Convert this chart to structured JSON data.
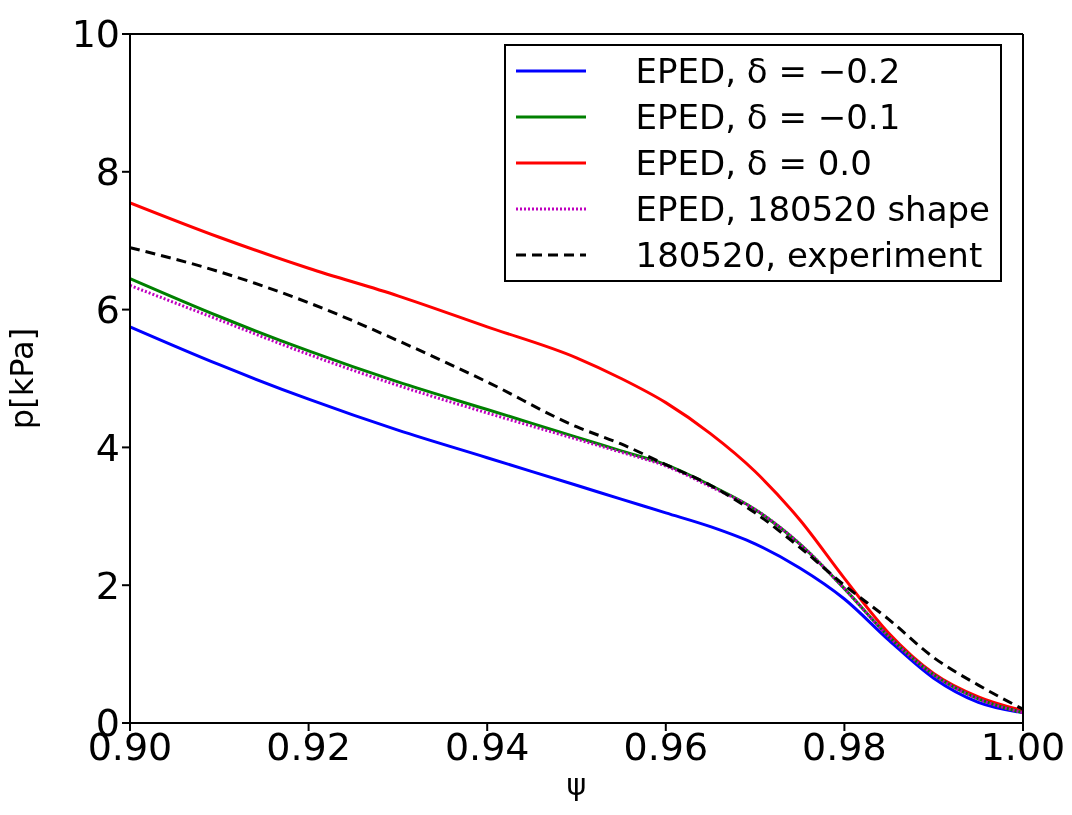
{
  "chart_data": {
    "type": "line",
    "xlabel": "ψ",
    "ylabel": "p[kPa]",
    "x": [
      0.9,
      0.91,
      0.92,
      0.93,
      0.94,
      0.95,
      0.955,
      0.96,
      0.965,
      0.97,
      0.975,
      0.98,
      0.985,
      0.99,
      0.995,
      1.0
    ],
    "xlim": [
      0.9,
      1.0
    ],
    "xticks": [
      {
        "value": 0.9,
        "label": "0.90"
      },
      0.92,
      0.94,
      0.96,
      0.98,
      {
        "value": 1.0,
        "label": "1.00"
      }
    ],
    "ylim": [
      0,
      10
    ],
    "yticks": [
      0,
      2,
      4,
      6,
      8,
      10
    ],
    "grid": false,
    "legend": "top right",
    "marker": "none",
    "series": [
      {
        "name": "EPED, δ = −0.2",
        "color": "#0000ff",
        "line_style": "solid",
        "values": [
          5.75,
          5.2,
          4.7,
          4.25,
          3.85,
          3.45,
          3.25,
          3.05,
          2.85,
          2.6,
          2.25,
          1.8,
          1.2,
          0.65,
          0.3,
          0.15
        ]
      },
      {
        "name": "EPED, δ = −0.1",
        "color": "#008000",
        "line_style": "solid",
        "values": [
          6.45,
          5.9,
          5.4,
          4.95,
          4.55,
          4.15,
          3.95,
          3.75,
          3.45,
          3.1,
          2.6,
          1.95,
          1.25,
          0.7,
          0.35,
          0.15
        ]
      },
      {
        "name": "EPED, δ = 0.0",
        "color": "#ff0000",
        "line_style": "solid",
        "values": [
          7.55,
          7.05,
          6.6,
          6.2,
          5.75,
          5.3,
          5.0,
          4.65,
          4.2,
          3.65,
          2.95,
          2.1,
          1.3,
          0.72,
          0.38,
          0.18
        ]
      },
      {
        "name": "EPED, 180520 shape",
        "color": "#bf00bf",
        "line_style": "dotted",
        "values": [
          6.35,
          5.85,
          5.35,
          4.9,
          4.5,
          4.12,
          3.93,
          3.73,
          3.43,
          3.1,
          2.6,
          1.95,
          1.25,
          0.7,
          0.35,
          0.15
        ]
      },
      {
        "name": "180520, experiment",
        "color": "#000000",
        "line_style": "dashed",
        "values": [
          6.9,
          6.55,
          6.1,
          5.55,
          4.95,
          4.3,
          4.05,
          3.75,
          3.45,
          3.05,
          2.55,
          2.0,
          1.5,
          0.95,
          0.55,
          0.2
        ]
      }
    ]
  }
}
